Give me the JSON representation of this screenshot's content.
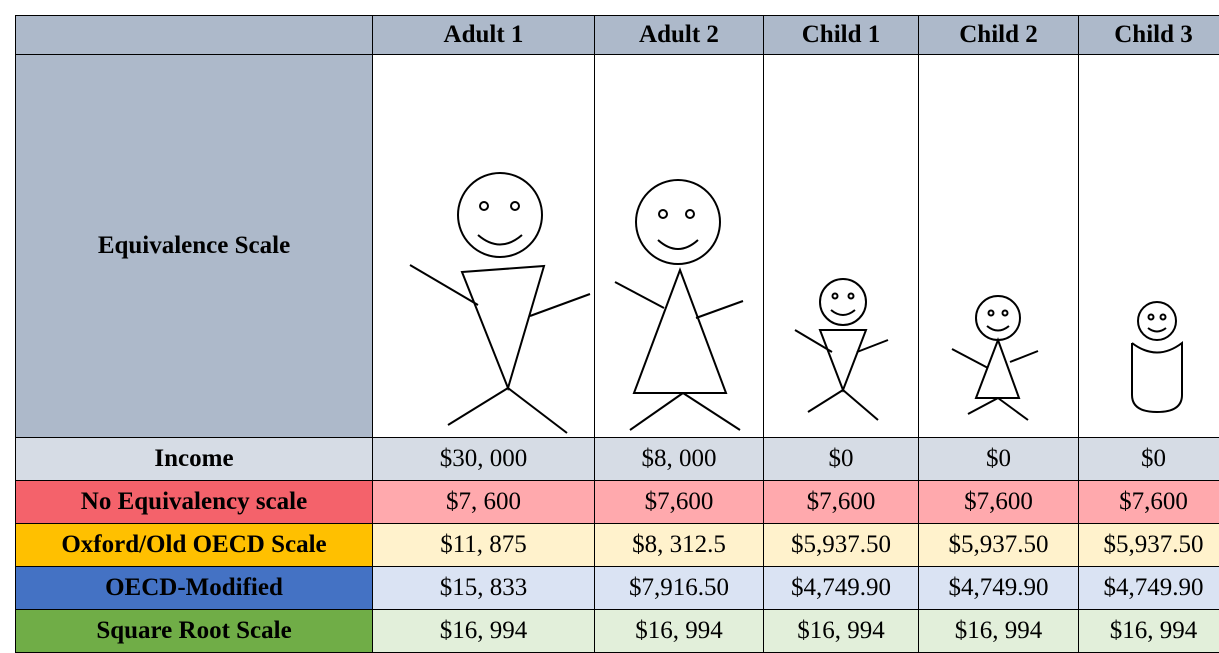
{
  "header": {
    "corner": "Equivalence Scale",
    "columns": [
      "Adult 1",
      "Adult 2",
      "Child 1",
      "Child 2",
      "Child 3"
    ]
  },
  "table": {
    "rows": [
      {
        "label": "Income",
        "values": [
          "$30, 000",
          "$8, 000",
          "$0",
          "$0",
          "$0"
        ]
      },
      {
        "label": "No Equivalency scale",
        "values": [
          "$7, 600",
          "$7,600",
          "$7,600",
          "$7,600",
          "$7,600"
        ]
      },
      {
        "label": "Oxford/Old OECD Scale",
        "values": [
          "$11, 875",
          "$8, 312.5",
          "$5,937.50",
          "$5,937.50",
          "$5,937.50"
        ]
      },
      {
        "label": "OECD-Modified",
        "values": [
          "$15, 833",
          "$7,916.50",
          "$4,749.90",
          "$4,749.90",
          "$4,749.90"
        ]
      },
      {
        "label": "Square Root Scale",
        "values": [
          "$16, 994",
          "$16, 994",
          "$16, 994",
          "$16, 994",
          "$16, 994"
        ]
      }
    ]
  }
}
